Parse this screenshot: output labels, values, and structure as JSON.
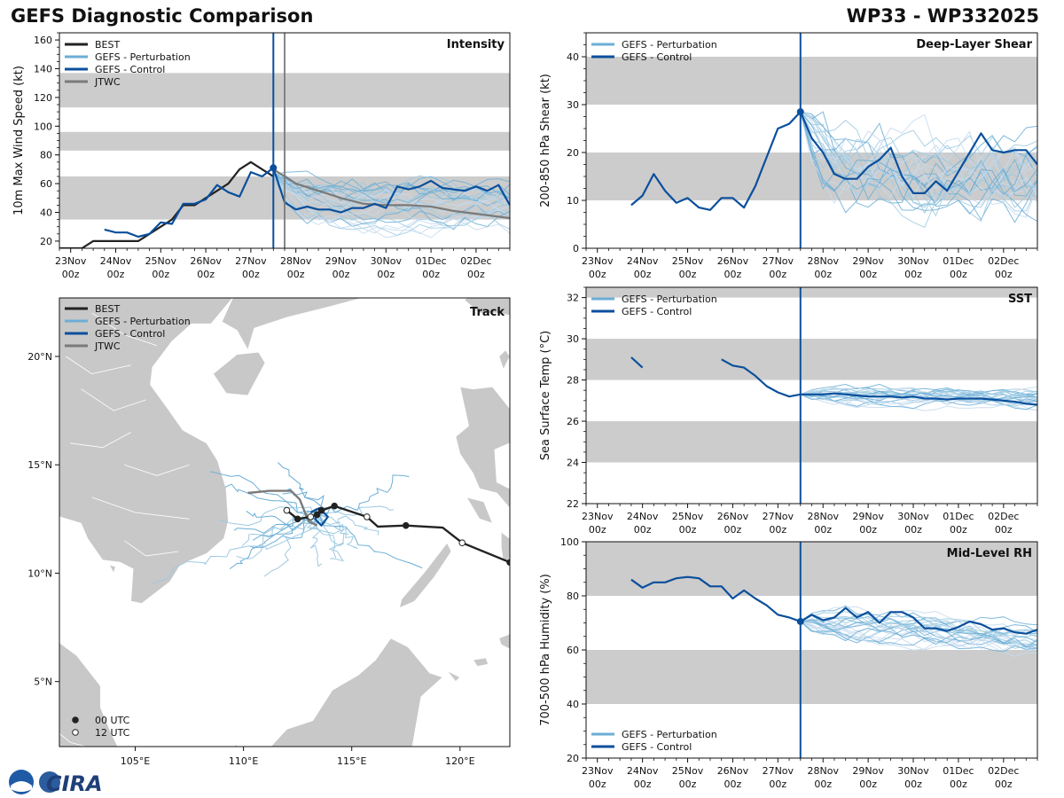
{
  "header": {
    "title": "GEFS Diagnostic Comparison",
    "storm": "WP33 - WP332025"
  },
  "logo": {
    "text": "CIRA"
  },
  "colors": {
    "best": "#222222",
    "perturbation": "#6baed6",
    "control": "#0b4f9c",
    "jtwc": "#7a7a7a",
    "band": "#cccccc",
    "land": "#c8c8c8"
  },
  "time_axis": {
    "ticks": [
      {
        "day": 0,
        "top": "23Nov",
        "bottom": "00z"
      },
      {
        "day": 1,
        "top": "24Nov",
        "bottom": "00z"
      },
      {
        "day": 2,
        "top": "25Nov",
        "bottom": "00z"
      },
      {
        "day": 3,
        "top": "26Nov",
        "bottom": "00z"
      },
      {
        "day": 4,
        "top": "27Nov",
        "bottom": "00z"
      },
      {
        "day": 5,
        "top": "28Nov",
        "bottom": "00z"
      },
      {
        "day": 6,
        "top": "29Nov",
        "bottom": "00z"
      },
      {
        "day": 7,
        "top": "30Nov",
        "bottom": "00z"
      },
      {
        "day": 8,
        "top": "01Dec",
        "bottom": "00z"
      },
      {
        "day": 9,
        "top": "02Dec",
        "bottom": "00z"
      }
    ],
    "range": [
      -0.25,
      9.75
    ],
    "analysis_day": 4.5
  },
  "chart_data": [
    {
      "id": "intensity",
      "type": "line",
      "title": "Intensity",
      "ylabel": "10m Max Wind Speed (kt)",
      "ylim": [
        15,
        165
      ],
      "yticks": [
        20,
        40,
        60,
        80,
        100,
        120,
        140,
        160
      ],
      "bands": [
        [
          35,
          65
        ],
        [
          83,
          96
        ],
        [
          113,
          137
        ]
      ],
      "legend": [
        {
          "label": "BEST",
          "key": "best"
        },
        {
          "label": "GEFS - Perturbation",
          "key": "perturbation"
        },
        {
          "label": "GEFS - Control",
          "key": "control"
        },
        {
          "label": "JTWC",
          "key": "jtwc"
        }
      ],
      "extra_vlines": [
        {
          "x": 4.75,
          "key": "jtwc"
        }
      ],
      "best": {
        "x": [
          -0.25,
          0,
          0.25,
          0.5,
          0.75,
          1,
          1.25,
          1.5,
          1.75,
          2,
          2.25,
          2.5,
          2.75,
          3,
          3.25,
          3.5,
          3.75,
          4,
          4.25,
          4.5
        ],
        "y": [
          15,
          15,
          15,
          20,
          20,
          20,
          20,
          20,
          25,
          30,
          35,
          45,
          45,
          50,
          55,
          60,
          70,
          75,
          70,
          65
        ]
      },
      "control": {
        "x": [
          0.75,
          1,
          1.25,
          1.5,
          1.75,
          2,
          2.25,
          2.5,
          2.75,
          3,
          3.25,
          3.5,
          3.75,
          4,
          4.25,
          4.5,
          4.75,
          5,
          5.25,
          5.5,
          5.75,
          6,
          6.25,
          6.5,
          6.75,
          7,
          7.25,
          7.5,
          7.75,
          8,
          8.25,
          8.5,
          8.75,
          9,
          9.25,
          9.5,
          9.75
        ],
        "y": [
          28,
          26,
          26,
          23,
          25,
          33,
          32,
          46,
          46,
          49,
          59,
          54,
          51,
          68,
          65,
          71,
          47,
          42,
          44,
          42,
          42,
          40,
          43,
          43,
          46,
          43,
          58,
          56,
          58,
          62,
          57,
          56,
          55,
          58,
          55,
          59,
          45
        ]
      },
      "jtwc": {
        "x": [
          4.5,
          5,
          5.5,
          6,
          6.5,
          7,
          7.5,
          8,
          8.5,
          9,
          9.5,
          9.75
        ],
        "y": [
          70,
          60,
          55,
          50,
          46,
          45,
          45,
          44,
          41,
          39,
          37,
          36
        ]
      },
      "ensemble": {
        "start": 4.5,
        "step": 0.25,
        "count": 24,
        "seed": 11,
        "base": 42,
        "spread": 16,
        "drift": 4,
        "noise": 6,
        "y0": 66
      },
      "marker": {
        "x": 4.5,
        "y": 71
      }
    },
    {
      "id": "shear",
      "type": "line",
      "title": "Deep-Layer Shear",
      "ylabel": "200-850 hPa Shear (kt)",
      "ylim": [
        0,
        45
      ],
      "yticks": [
        0,
        10,
        20,
        30,
        40
      ],
      "bands": [
        [
          10,
          20
        ],
        [
          30,
          40
        ]
      ],
      "legend": [
        {
          "label": "GEFS - Perturbation",
          "key": "perturbation"
        },
        {
          "label": "GEFS - Control",
          "key": "control"
        }
      ],
      "control": {
        "x": [
          0.75,
          1,
          1.25,
          1.5,
          1.75,
          2,
          2.25,
          2.5,
          2.75,
          3,
          3.25,
          3.5,
          3.75,
          4,
          4.25,
          4.5,
          4.75,
          5,
          5.25,
          5.5,
          5.75,
          6,
          6.25,
          6.5,
          6.75,
          7,
          7.25,
          7.5,
          7.75,
          8,
          8.25,
          8.5,
          8.75,
          9,
          9.25,
          9.5,
          9.75
        ],
        "y": [
          9,
          11,
          15.5,
          12,
          9.5,
          10.5,
          8.5,
          8,
          10.5,
          10.5,
          8.5,
          13,
          19,
          25,
          26,
          28.5,
          23,
          20,
          15.5,
          14.5,
          14.5,
          17,
          18.5,
          21,
          15,
          11.5,
          11.5,
          14,
          12,
          16,
          20,
          24,
          20.5,
          20,
          20.5,
          20.5,
          17.5
        ]
      },
      "ensemble": {
        "start": 4.5,
        "step": 0.25,
        "count": 24,
        "seed": 23,
        "base": 16,
        "spread": 5,
        "drift": 0,
        "noise": 5,
        "y0": 28.5
      },
      "marker": {
        "x": 4.5,
        "y": 28.5
      }
    },
    {
      "id": "sst",
      "type": "line",
      "title": "SST",
      "ylabel": "Sea Surface Temp (°C)",
      "ylim": [
        22,
        32.5
      ],
      "yticks": [
        22,
        24,
        26,
        28,
        30,
        32
      ],
      "bands": [
        [
          24,
          26
        ],
        [
          28,
          30
        ],
        [
          32,
          33
        ]
      ],
      "legend": [
        {
          "label": "GEFS - Perturbation",
          "key": "perturbation"
        },
        {
          "label": "GEFS - Control",
          "key": "control"
        }
      ],
      "control_segments": [
        {
          "x": [
            0.75,
            1
          ],
          "y": [
            29.1,
            28.6
          ]
        },
        {
          "x": [
            2.75,
            3,
            3.25,
            3.5,
            3.75,
            4,
            4.25,
            4.5,
            4.75,
            5,
            5.25,
            5.5,
            5.75,
            6,
            6.25,
            6.5,
            6.75,
            7,
            7.25,
            7.5,
            7.75,
            8,
            8.25,
            8.5,
            8.75,
            9,
            9.25,
            9.5,
            9.75
          ],
          "y": [
            29.0,
            28.7,
            28.6,
            28.2,
            27.7,
            27.4,
            27.2,
            27.3,
            27.3,
            27.3,
            27.35,
            27.3,
            27.25,
            27.2,
            27.2,
            27.2,
            27.15,
            27.2,
            27.1,
            27.1,
            27.05,
            27.1,
            27.1,
            27.1,
            27.05,
            27.0,
            26.95,
            26.85,
            26.8
          ]
        }
      ],
      "ensemble": {
        "start": 4.5,
        "step": 0.25,
        "count": 24,
        "seed": 37,
        "base": 27.2,
        "spread": 0.35,
        "drift": -0.15,
        "noise": 0.2,
        "y0": 27.3
      },
      "marker": null
    },
    {
      "id": "rh",
      "type": "line",
      "title": "Mid-Level RH",
      "ylabel": "700-500 hPa Humidity (%)",
      "ylim": [
        20,
        100
      ],
      "yticks": [
        20,
        40,
        60,
        80,
        100
      ],
      "bands": [
        [
          40,
          60
        ],
        [
          80,
          100
        ]
      ],
      "legend_position": "bottom-left",
      "legend": [
        {
          "label": "GEFS - Perturbation",
          "key": "perturbation"
        },
        {
          "label": "GEFS - Control",
          "key": "control"
        }
      ],
      "control": {
        "x": [
          0.75,
          1,
          1.25,
          1.5,
          1.75,
          2,
          2.25,
          2.5,
          2.75,
          3,
          3.25,
          3.5,
          3.75,
          4,
          4.25,
          4.5,
          4.75,
          5,
          5.25,
          5.5,
          5.75,
          6,
          6.25,
          6.5,
          6.75,
          7,
          7.25,
          7.5,
          7.75,
          8,
          8.25,
          8.5,
          8.75,
          9,
          9.25,
          9.5,
          9.75
        ],
        "y": [
          86,
          83,
          85,
          85,
          86.5,
          87,
          86.5,
          83.5,
          83.5,
          79,
          82,
          79,
          76.5,
          73,
          72,
          70.5,
          73,
          71,
          72,
          75.5,
          72,
          74,
          70,
          74,
          74,
          72,
          68,
          68,
          67,
          68.5,
          70.5,
          69.5,
          67.5,
          68,
          66.5,
          66,
          67.5
        ]
      },
      "ensemble": {
        "start": 4.5,
        "step": 0.25,
        "count": 24,
        "seed": 51,
        "base": 70,
        "spread": 4,
        "drift": -6,
        "noise": 2.5,
        "y0": 70.5
      },
      "marker": {
        "x": 4.5,
        "y": 70.5
      }
    },
    {
      "id": "track",
      "type": "scatter",
      "title": "Track",
      "xlim": [
        101.5,
        122.3
      ],
      "ylim": [
        2,
        22.7
      ],
      "xticks": [
        {
          "v": 105,
          "label": "105°E"
        },
        {
          "v": 110,
          "label": "110°E"
        },
        {
          "v": 115,
          "label": "115°E"
        },
        {
          "v": 120,
          "label": "120°E"
        }
      ],
      "yticks": [
        {
          "v": 5,
          "label": "5°N"
        },
        {
          "v": 10,
          "label": "10°N"
        },
        {
          "v": 15,
          "label": "15°N"
        },
        {
          "v": 20,
          "label": "20°N"
        }
      ],
      "legend": [
        {
          "label": "BEST",
          "key": "best"
        },
        {
          "label": "GEFS - Perturbation",
          "key": "perturbation"
        },
        {
          "label": "GEFS - Control",
          "key": "control"
        },
        {
          "label": "JTWC",
          "key": "jtwc"
        }
      ],
      "marker_legend": [
        {
          "label": "00 UTC",
          "fill": "#222222"
        },
        {
          "label": "12 UTC",
          "fill": "#ffffff"
        }
      ],
      "best_track": [
        {
          "lon": 122.3,
          "lat": 10.5,
          "t": "00"
        },
        {
          "lon": 120.1,
          "lat": 11.4,
          "t": "12"
        },
        {
          "lon": 119.2,
          "lat": 12.1
        },
        {
          "lon": 117.5,
          "lat": 12.2,
          "t": "00"
        },
        {
          "lon": 116.2,
          "lat": 12.15
        },
        {
          "lon": 115.7,
          "lat": 12.6,
          "t": "12"
        },
        {
          "lon": 114.2,
          "lat": 13.1,
          "t": "00"
        },
        {
          "lon": 113.6,
          "lat": 12.9,
          "t": "00"
        },
        {
          "lon": 113.4,
          "lat": 12.7,
          "t": "00"
        },
        {
          "lon": 113.1,
          "lat": 12.6,
          "t": "12"
        },
        {
          "lon": 112.5,
          "lat": 12.5,
          "t": "00"
        },
        {
          "lon": 112.0,
          "lat": 12.9,
          "t": "12"
        }
      ],
      "jtwc_track": [
        {
          "lon": 113.4,
          "lat": 12.2
        },
        {
          "lon": 113.0,
          "lat": 12.4
        },
        {
          "lon": 112.8,
          "lat": 12.9
        },
        {
          "lon": 112.6,
          "lat": 13.4
        },
        {
          "lon": 112.2,
          "lat": 13.8
        },
        {
          "lon": 111.2,
          "lat": 13.8
        },
        {
          "lon": 110.2,
          "lat": 13.7
        }
      ],
      "control_track": [
        {
          "lon": 113.6,
          "lat": 12.9
        },
        {
          "lon": 113.3,
          "lat": 12.5
        },
        {
          "lon": 113.6,
          "lat": 12.2
        },
        {
          "lon": 113.9,
          "lat": 12.6
        },
        {
          "lon": 113.5,
          "lat": 13.0
        },
        {
          "lon": 113.1,
          "lat": 12.8
        }
      ],
      "ensemble": {
        "count": 24,
        "seed": 77,
        "lon0": 113.5,
        "lat0": 12.7
      }
    }
  ]
}
